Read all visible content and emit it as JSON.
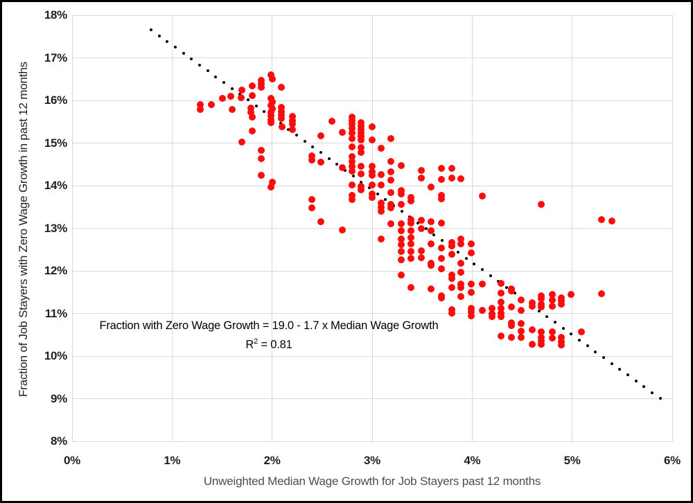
{
  "chart_data": {
    "type": "scatter",
    "title": "",
    "xlabel": "Unweighted Median Wage Growth for Job Stayers past 12 months",
    "ylabel": "Fraction of Job Stayers with Zero Wage Growth in past 12 months",
    "xlim": [
      0,
      6
    ],
    "ylim": [
      8,
      18
    ],
    "x_ticks": [
      {
        "value": 0,
        "label": "0%"
      },
      {
        "value": 1,
        "label": "1%"
      },
      {
        "value": 2,
        "label": "2%"
      },
      {
        "value": 3,
        "label": "3%"
      },
      {
        "value": 4,
        "label": "4%"
      },
      {
        "value": 5,
        "label": "5%"
      },
      {
        "value": 6,
        "label": "6%"
      }
    ],
    "y_ticks": [
      {
        "value": 8,
        "label": "8%"
      },
      {
        "value": 9,
        "label": "9%"
      },
      {
        "value": 10,
        "label": "10%"
      },
      {
        "value": 11,
        "label": "11%"
      },
      {
        "value": 12,
        "label": "12%"
      },
      {
        "value": 13,
        "label": "13%"
      },
      {
        "value": 14,
        "label": "14%"
      },
      {
        "value": 15,
        "label": "15%"
      },
      {
        "value": 16,
        "label": "16%"
      },
      {
        "value": 17,
        "label": "17%"
      },
      {
        "value": 18,
        "label": "18%"
      }
    ],
    "grid": true,
    "grid_color": "#d9d9d9",
    "point_color": "#fb0d0d",
    "trendline": {
      "label": "dotted-fit-line",
      "color": "#000000",
      "intercept": 19.0,
      "slope": -1.7,
      "x_start": 0.79,
      "x_end": 5.88,
      "num_dots": 64
    },
    "annotation": {
      "line1": "Fraction with Zero Wage Growth = 19.0 - 1.7 x Median Wage Growth",
      "r2_prefix": "R",
      "r2_sup": "2",
      "r2_suffix": " = 0.81"
    },
    "points": [
      [
        1.28,
        15.9
      ],
      [
        1.28,
        15.79
      ],
      [
        1.39,
        15.9
      ],
      [
        1.5,
        16.05
      ],
      [
        1.59,
        16.1
      ],
      [
        1.6,
        15.79
      ],
      [
        1.7,
        16.24
      ],
      [
        1.69,
        16.07
      ],
      [
        1.7,
        15.02
      ],
      [
        1.8,
        16.34
      ],
      [
        1.8,
        16.11
      ],
      [
        1.79,
        15.82
      ],
      [
        1.79,
        15.72
      ],
      [
        1.8,
        15.61
      ],
      [
        1.8,
        15.28
      ],
      [
        1.89,
        16.47
      ],
      [
        1.89,
        16.39
      ],
      [
        1.89,
        16.31
      ],
      [
        1.89,
        14.83
      ],
      [
        1.89,
        14.63
      ],
      [
        1.89,
        14.24
      ],
      [
        1.99,
        16.6
      ],
      [
        2.0,
        16.5
      ],
      [
        1.99,
        16.05
      ],
      [
        2.0,
        15.97
      ],
      [
        1.99,
        15.89
      ],
      [
        2.0,
        15.8
      ],
      [
        1.99,
        15.72
      ],
      [
        1.99,
        15.64
      ],
      [
        1.99,
        15.54
      ],
      [
        1.99,
        15.48
      ],
      [
        2.0,
        14.08
      ],
      [
        1.99,
        13.97
      ],
      [
        2.09,
        16.31
      ],
      [
        2.09,
        15.84
      ],
      [
        2.09,
        15.74
      ],
      [
        2.09,
        15.66
      ],
      [
        2.09,
        15.58
      ],
      [
        2.1,
        15.38
      ],
      [
        2.2,
        15.63
      ],
      [
        2.2,
        15.53
      ],
      [
        2.2,
        15.45
      ],
      [
        2.2,
        15.32
      ],
      [
        2.4,
        14.7
      ],
      [
        2.4,
        14.6
      ],
      [
        2.4,
        13.68
      ],
      [
        2.4,
        13.48
      ],
      [
        2.49,
        15.17
      ],
      [
        2.49,
        14.55
      ],
      [
        2.49,
        13.15
      ],
      [
        2.6,
        15.51
      ],
      [
        2.7,
        15.26
      ],
      [
        2.7,
        14.42
      ],
      [
        2.7,
        12.96
      ],
      [
        2.8,
        15.61
      ],
      [
        2.8,
        15.53
      ],
      [
        2.8,
        15.45
      ],
      [
        2.8,
        15.35
      ],
      [
        2.8,
        15.24
      ],
      [
        2.8,
        15.11
      ],
      [
        2.8,
        14.91
      ],
      [
        2.8,
        14.69
      ],
      [
        2.8,
        14.57
      ],
      [
        2.8,
        14.46
      ],
      [
        2.8,
        14.34
      ],
      [
        2.8,
        14.02
      ],
      [
        2.8,
        13.77
      ],
      [
        2.8,
        13.67
      ],
      [
        2.89,
        15.48
      ],
      [
        2.89,
        15.4
      ],
      [
        2.89,
        15.32
      ],
      [
        2.89,
        15.24
      ],
      [
        2.89,
        15.16
      ],
      [
        2.89,
        15.07
      ],
      [
        2.89,
        14.89
      ],
      [
        2.89,
        14.78
      ],
      [
        2.89,
        14.46
      ],
      [
        2.89,
        14.28
      ],
      [
        2.89,
        13.98
      ],
      [
        2.89,
        13.9
      ],
      [
        3.0,
        15.38
      ],
      [
        3.0,
        15.07
      ],
      [
        3.0,
        14.46
      ],
      [
        3.0,
        14.33
      ],
      [
        3.0,
        14.24
      ],
      [
        3.0,
        14.02
      ],
      [
        3.0,
        13.81
      ],
      [
        3.0,
        13.72
      ],
      [
        3.09,
        14.87
      ],
      [
        3.09,
        14.26
      ],
      [
        3.09,
        14.02
      ],
      [
        3.09,
        13.59
      ],
      [
        3.09,
        13.5
      ],
      [
        3.09,
        13.4
      ],
      [
        3.09,
        12.75
      ],
      [
        3.19,
        15.11
      ],
      [
        3.19,
        14.57
      ],
      [
        3.19,
        14.33
      ],
      [
        3.19,
        14.13
      ],
      [
        3.19,
        13.84
      ],
      [
        3.19,
        13.56
      ],
      [
        3.19,
        13.48
      ],
      [
        3.19,
        13.11
      ],
      [
        3.29,
        14.47
      ],
      [
        3.29,
        13.89
      ],
      [
        3.29,
        13.81
      ],
      [
        3.29,
        13.56
      ],
      [
        3.29,
        13.11
      ],
      [
        3.29,
        12.94
      ],
      [
        3.29,
        12.75
      ],
      [
        3.29,
        12.62
      ],
      [
        3.29,
        12.46
      ],
      [
        3.29,
        12.26
      ],
      [
        3.29,
        11.9
      ],
      [
        3.39,
        13.72
      ],
      [
        3.39,
        13.64
      ],
      [
        3.39,
        13.2
      ],
      [
        3.39,
        13.12
      ],
      [
        3.39,
        12.94
      ],
      [
        3.39,
        12.78
      ],
      [
        3.39,
        12.63
      ],
      [
        3.39,
        12.46
      ],
      [
        3.39,
        12.29
      ],
      [
        3.39,
        11.61
      ],
      [
        3.49,
        14.36
      ],
      [
        3.49,
        14.18
      ],
      [
        3.49,
        13.19
      ],
      [
        3.49,
        13.0
      ],
      [
        3.49,
        12.47
      ],
      [
        3.49,
        12.31
      ],
      [
        3.59,
        13.97
      ],
      [
        3.59,
        13.15
      ],
      [
        3.59,
        12.94
      ],
      [
        3.59,
        12.63
      ],
      [
        3.59,
        12.18
      ],
      [
        3.59,
        12.13
      ],
      [
        3.59,
        11.58
      ],
      [
        3.69,
        14.41
      ],
      [
        3.69,
        14.15
      ],
      [
        3.69,
        13.77
      ],
      [
        3.69,
        13.69
      ],
      [
        3.69,
        13.13
      ],
      [
        3.69,
        12.54
      ],
      [
        3.69,
        12.29
      ],
      [
        3.69,
        12.05
      ],
      [
        3.69,
        11.41
      ],
      [
        3.69,
        11.37
      ],
      [
        3.8,
        14.41
      ],
      [
        3.8,
        14.18
      ],
      [
        3.8,
        12.67
      ],
      [
        3.8,
        12.59
      ],
      [
        3.8,
        12.39
      ],
      [
        3.8,
        11.9
      ],
      [
        3.8,
        11.82
      ],
      [
        3.8,
        11.61
      ],
      [
        3.8,
        11.09
      ],
      [
        3.8,
        11.01
      ],
      [
        3.89,
        14.16
      ],
      [
        3.89,
        12.75
      ],
      [
        3.89,
        12.63
      ],
      [
        3.89,
        12.18
      ],
      [
        3.89,
        11.97
      ],
      [
        3.89,
        11.69
      ],
      [
        3.89,
        11.61
      ],
      [
        3.89,
        11.4
      ],
      [
        3.99,
        12.63
      ],
      [
        3.99,
        12.42
      ],
      [
        3.99,
        11.69
      ],
      [
        3.99,
        11.5
      ],
      [
        3.99,
        11.12
      ],
      [
        3.99,
        11.04
      ],
      [
        3.99,
        10.94
      ],
      [
        4.1,
        13.76
      ],
      [
        4.1,
        11.69
      ],
      [
        4.1,
        11.07
      ],
      [
        4.2,
        11.12
      ],
      [
        4.2,
        11.0
      ],
      [
        4.2,
        10.92
      ],
      [
        4.29,
        11.71
      ],
      [
        4.29,
        11.48
      ],
      [
        4.29,
        11.27
      ],
      [
        4.29,
        11.12
      ],
      [
        4.29,
        11.01
      ],
      [
        4.29,
        10.93
      ],
      [
        4.29,
        10.47
      ],
      [
        4.39,
        11.57
      ],
      [
        4.39,
        11.53
      ],
      [
        4.39,
        11.15
      ],
      [
        4.39,
        10.78
      ],
      [
        4.39,
        10.72
      ],
      [
        4.39,
        10.44
      ],
      [
        4.49,
        11.32
      ],
      [
        4.49,
        11.07
      ],
      [
        4.49,
        10.76
      ],
      [
        4.49,
        10.59
      ],
      [
        4.49,
        10.44
      ],
      [
        4.6,
        11.25
      ],
      [
        4.6,
        11.17
      ],
      [
        4.6,
        10.62
      ],
      [
        4.6,
        10.28
      ],
      [
        4.69,
        13.56
      ],
      [
        4.69,
        11.41
      ],
      [
        4.69,
        11.35
      ],
      [
        4.69,
        11.22
      ],
      [
        4.69,
        11.15
      ],
      [
        4.69,
        10.57
      ],
      [
        4.69,
        10.44
      ],
      [
        4.69,
        10.36
      ],
      [
        4.69,
        10.28
      ],
      [
        4.8,
        11.45
      ],
      [
        4.8,
        11.32
      ],
      [
        4.8,
        11.17
      ],
      [
        4.8,
        10.57
      ],
      [
        4.8,
        10.42
      ],
      [
        4.89,
        11.37
      ],
      [
        4.89,
        11.3
      ],
      [
        4.89,
        11.22
      ],
      [
        4.89,
        10.44
      ],
      [
        4.89,
        10.34
      ],
      [
        4.89,
        10.26
      ],
      [
        4.99,
        11.45
      ],
      [
        5.09,
        10.57
      ],
      [
        5.29,
        13.2
      ],
      [
        5.4,
        13.17
      ],
      [
        5.29,
        11.47
      ]
    ]
  }
}
